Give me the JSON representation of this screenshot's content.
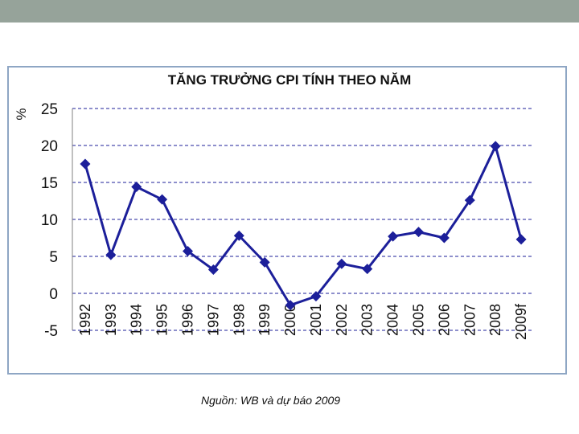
{
  "page": {
    "source_note": "Nguồn: WB và dự báo 2009"
  },
  "colors": {
    "top_bar": "#96a39a",
    "series": "#1c1f9a",
    "grid": "#1c1f9a",
    "frame": "#8ea6c4"
  },
  "chart_data": {
    "type": "line",
    "title": "TĂNG TRƯỞNG CPI TÍNH THEO NĂM",
    "ylabel": "%",
    "xlabel": "",
    "ylim": [
      -5,
      25
    ],
    "yticks": [
      -5,
      0,
      5,
      10,
      15,
      20,
      25
    ],
    "grid": true,
    "categories": [
      "1992",
      "1993",
      "1994",
      "1995",
      "1996",
      "1997",
      "1998",
      "1999",
      "2000",
      "2001",
      "2002",
      "2003",
      "2004",
      "2005",
      "2006",
      "2007",
      "2008",
      "2009f"
    ],
    "series": [
      {
        "values": [
          17.5,
          5.2,
          14.4,
          12.7,
          5.7,
          3.2,
          7.8,
          4.2,
          -1.6,
          -0.4,
          4.0,
          3.3,
          7.7,
          8.3,
          7.5,
          12.6,
          19.9,
          7.3
        ]
      }
    ]
  }
}
